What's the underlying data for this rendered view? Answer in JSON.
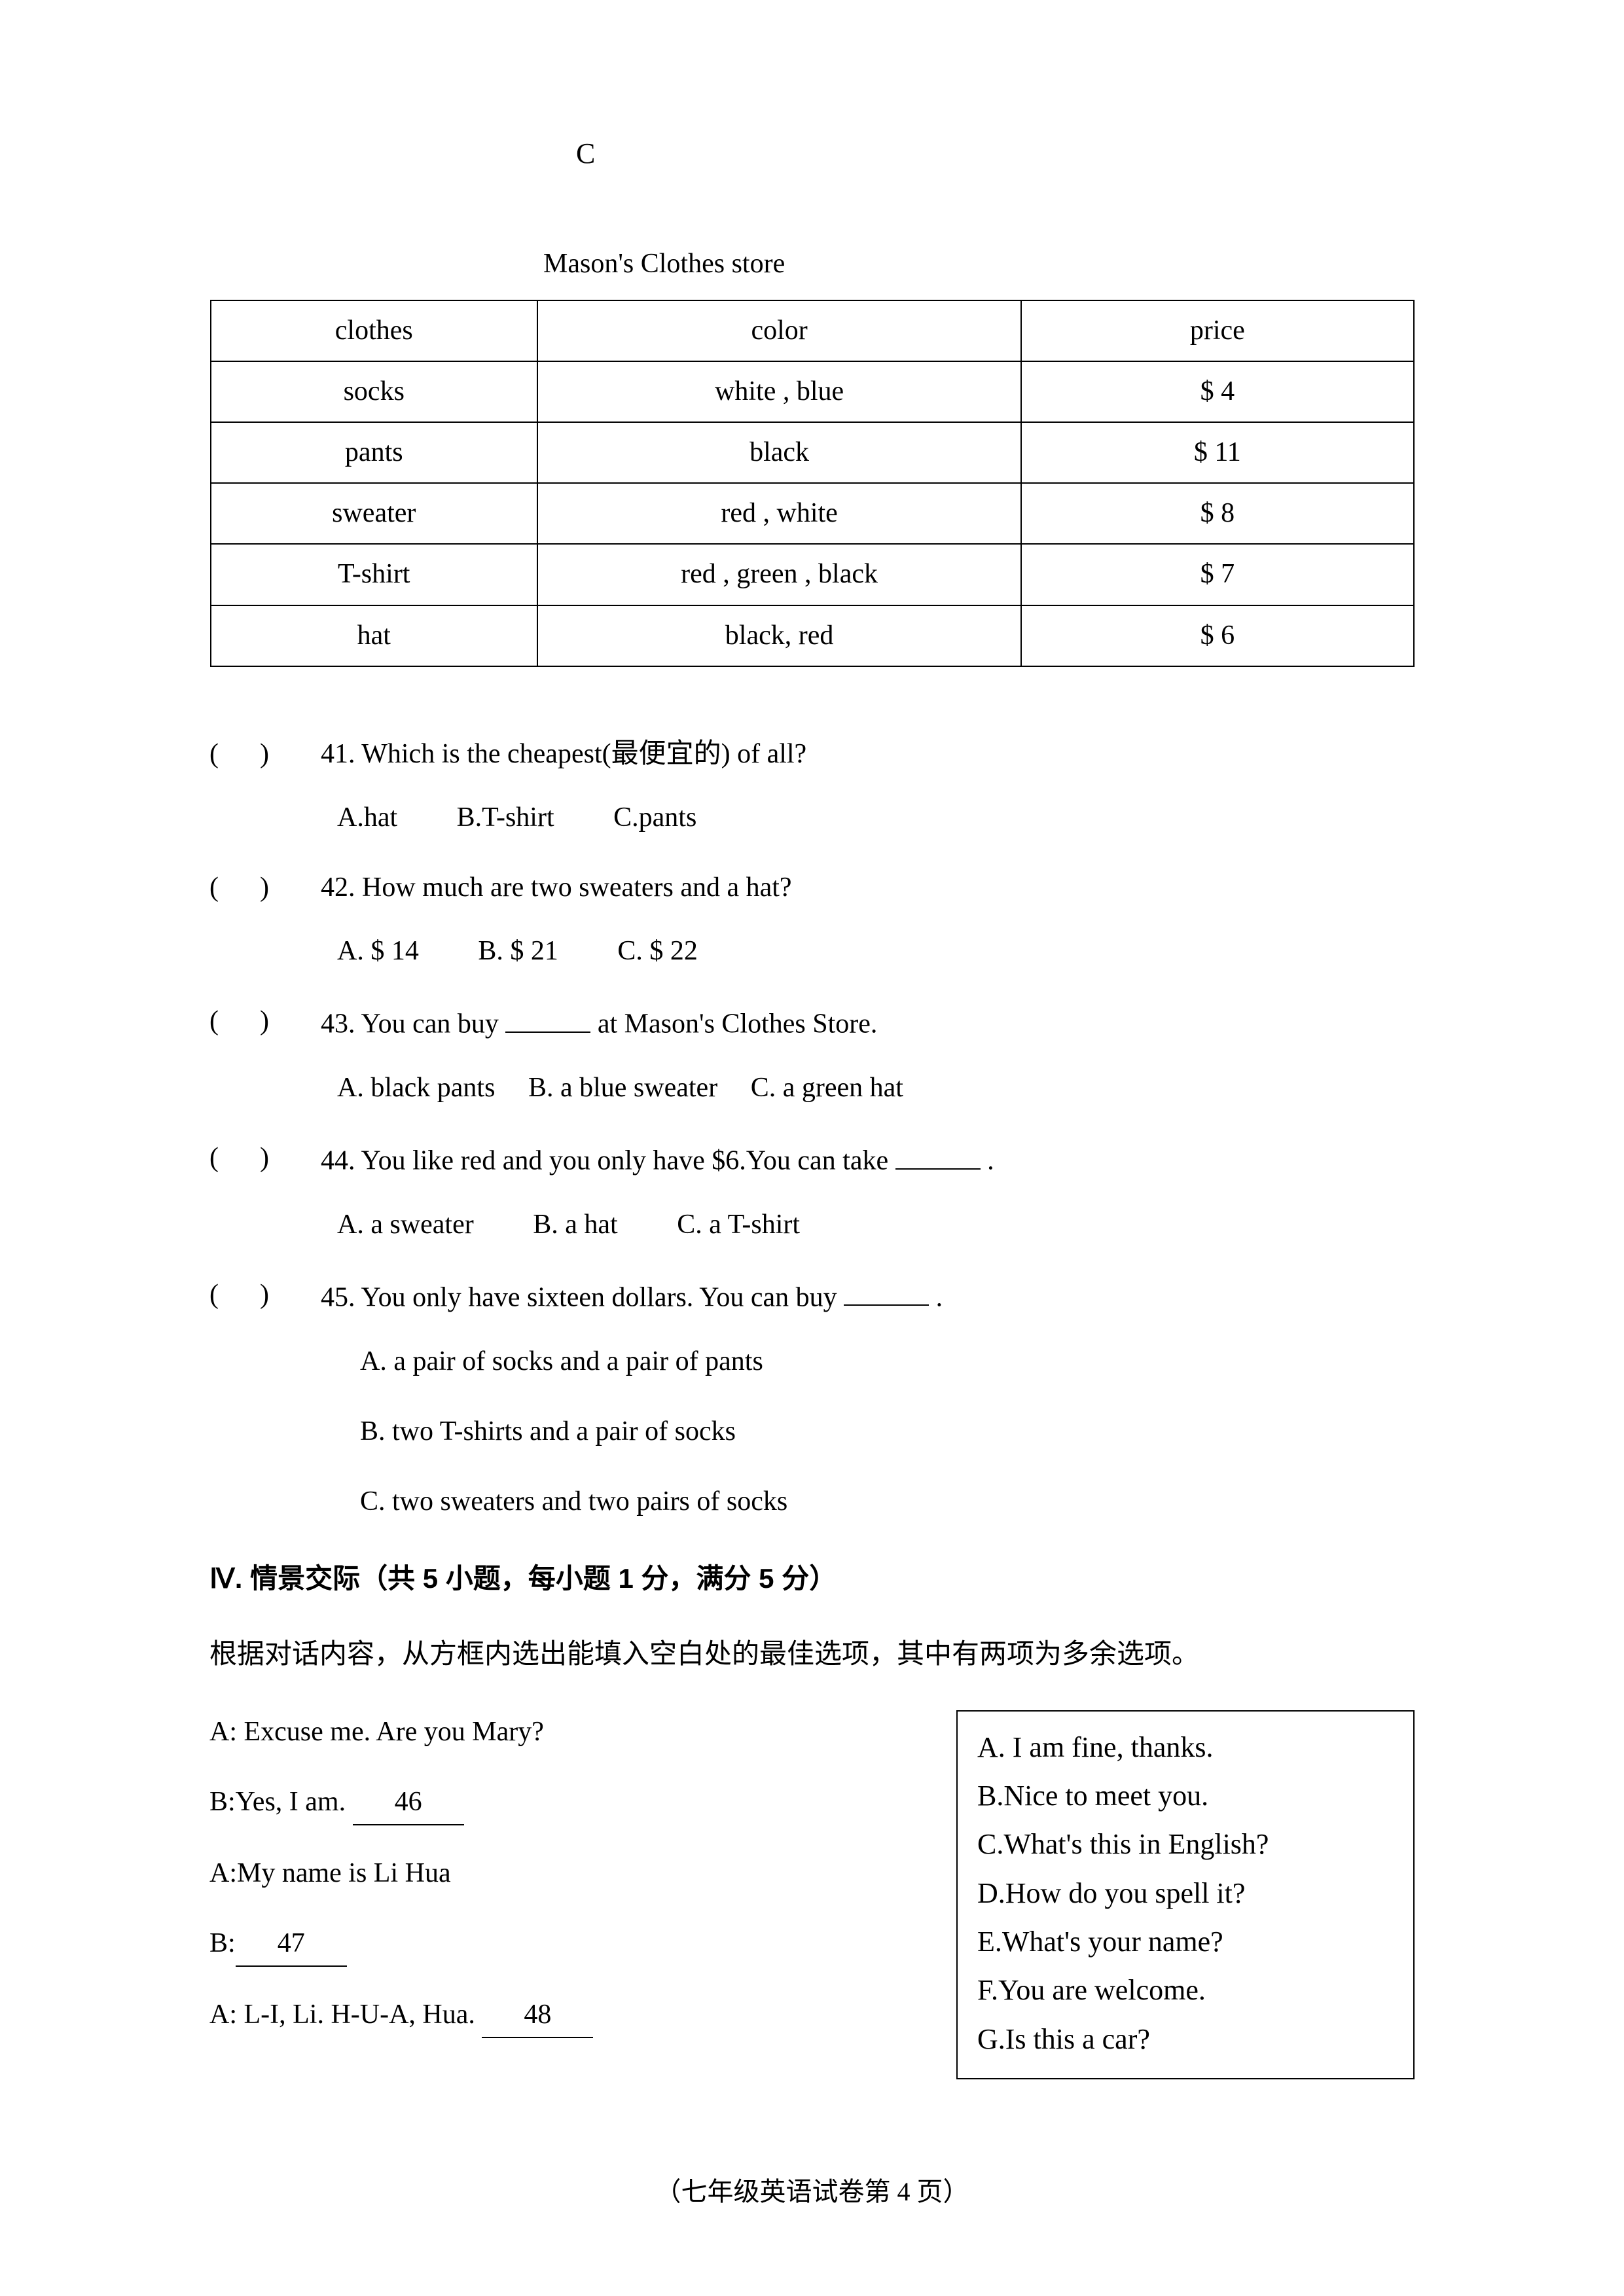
{
  "section_letter": "C",
  "table": {
    "title": "Mason's Clothes store",
    "headers": [
      "clothes",
      "color",
      "price"
    ],
    "rows": [
      [
        "socks",
        "white , blue",
        "$ 4"
      ],
      [
        "pants",
        "black",
        "$ 11"
      ],
      [
        "sweater",
        "red   , white",
        "$ 8"
      ],
      [
        "T-shirt",
        "red , green , black",
        "$ 7"
      ],
      [
        "hat",
        "black,   red",
        "$ 6"
      ]
    ]
  },
  "questions": [
    {
      "num": "41",
      "text": "Which is the cheapest(最便宜的) of all?",
      "options": [
        "A.hat",
        "B.T-shirt",
        "C.pants"
      ]
    },
    {
      "num": "42",
      "text": "How much are two sweaters and a hat?",
      "options": [
        "A. $ 14",
        "B. $ 21",
        "C. $ 22"
      ]
    },
    {
      "num": "43",
      "prefix": "You can buy ",
      "suffix": " at Mason's Clothes Store.",
      "options": [
        "A. black pants",
        "B. a blue sweater",
        "C. a green hat"
      ]
    },
    {
      "num": "44",
      "prefix": "You like red and you only have $6.You can take ",
      "suffix": "  .",
      "options": [
        "A. a sweater",
        "B. a hat",
        "C. a T-shirt"
      ]
    },
    {
      "num": "45",
      "prefix": "You only have sixteen dollars. You can buy ",
      "suffix": "  .",
      "options_vert": [
        "A.  a pair of socks and a pair of pants",
        "B.  two T-shirts and a pair of socks",
        "C.  two sweaters and two pairs of socks"
      ]
    }
  ],
  "section4": {
    "header": "Ⅳ.  情景交际（共 5 小题，每小题 1 分，满分 5 分）",
    "instruction": "根据对话内容，从方框内选出能填入空白处的最佳选项，其中有两项为多余选项。",
    "dialogue": [
      {
        "text": "A: Excuse me. Are you Mary?"
      },
      {
        "text": "B:Yes, I am.   ",
        "blank": "46"
      },
      {
        "text": "A:My name is Li Hua"
      },
      {
        "text": "B:",
        "blank": "47"
      },
      {
        "text": "A: L-I, Li. H-U-A, Hua.   ",
        "blank": "48"
      }
    ],
    "choices": [
      "A.  I am fine, thanks.",
      "B.Nice to meet you.",
      "C.What's this in English?",
      "D.How do you spell it?",
      "E.What's your name?",
      "F.You are welcome.",
      "G.Is this a car?"
    ]
  },
  "footer": "（七年级英语试卷第 4 页）"
}
